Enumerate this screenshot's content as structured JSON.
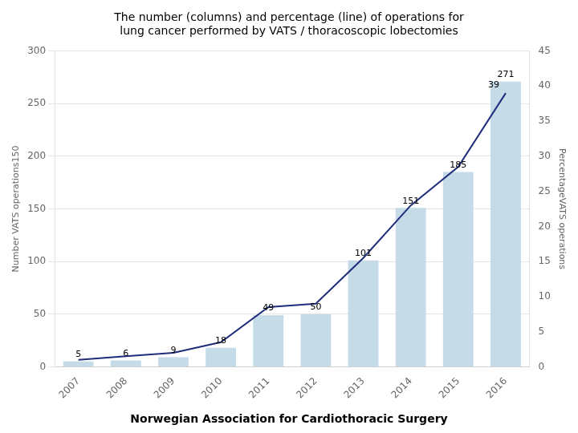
{
  "chart_data": {
    "type": "bar",
    "title": [
      "The number (columns) and percentage (line) of operations for",
      "lung cancer performed by VATS / thoracoscopic lobectomies"
    ],
    "subtitle": "Norwegian Association for Cardiothoracic Surgery",
    "categories": [
      "2007",
      "2008",
      "2009",
      "2010",
      "2011",
      "2012",
      "2013",
      "2014",
      "2015",
      "2016"
    ],
    "y_label": "Number VATS operations150",
    "y2_label": "PercentageVATS operations",
    "series": [
      {
        "type": "bar",
        "color": "#c5dce8",
        "values": [
          5,
          6,
          9,
          18,
          49,
          50,
          101,
          151,
          185,
          271
        ],
        "data_labels": true
      },
      {
        "type": "line",
        "color": "#1f2d7a",
        "values": [
          1.0,
          1.5,
          2.0,
          3.5,
          8.5,
          9.0,
          15.5,
          23.0,
          28.5,
          39.0
        ],
        "axis": "y2"
      }
    ],
    "ylim": [
      0,
      300
    ],
    "yticks": [
      0,
      50,
      100,
      150,
      200,
      250,
      300
    ],
    "y2lim": [
      0,
      45
    ],
    "y2ticks": [
      0,
      5,
      10,
      15,
      20,
      25,
      30,
      35,
      40,
      45
    ],
    "grid": true,
    "annotations": [
      {
        "text": "39",
        "x": "2016",
        "y": 39,
        "axis": "y2"
      }
    ]
  }
}
